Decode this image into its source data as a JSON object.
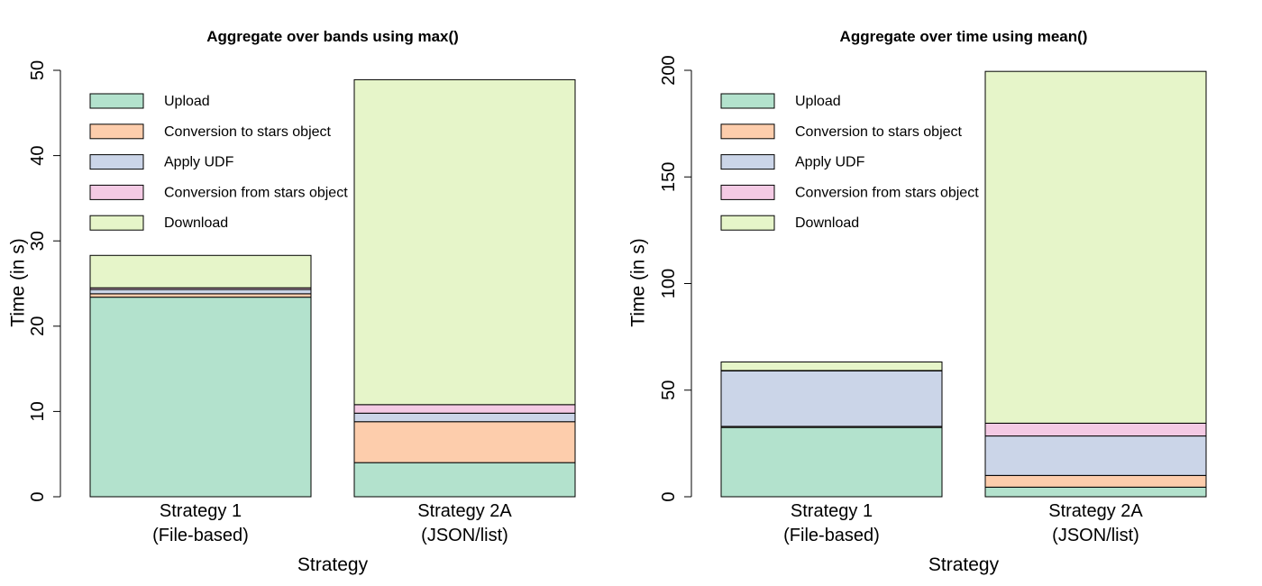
{
  "chart_data": [
    {
      "type": "bar",
      "stacked": true,
      "title": "Aggregate over bands using max()",
      "xlabel": "Strategy",
      "ylabel": "Time (in s)",
      "ylim": [
        0,
        50
      ],
      "yticks": [
        0,
        10,
        20,
        30,
        40,
        50
      ],
      "grid": false,
      "legend_position": "top-left",
      "categories": [
        [
          "Strategy 1",
          "(File-based)"
        ],
        [
          "Strategy 2A",
          "(JSON/list)"
        ]
      ],
      "series": [
        {
          "name": "Upload",
          "color": "#b3e2cd",
          "values": [
            23.4,
            4.0
          ]
        },
        {
          "name": "Conversion to stars object",
          "color": "#fdcdac",
          "values": [
            0.4,
            4.8
          ]
        },
        {
          "name": "Apply UDF",
          "color": "#cbd5e8",
          "values": [
            0.5,
            1.0
          ]
        },
        {
          "name": "Conversion from stars object",
          "color": "#f4cae4",
          "values": [
            0.2,
            1.0
          ]
        },
        {
          "name": "Download",
          "color": "#e6f5c9",
          "values": [
            3.8,
            38.1
          ]
        }
      ]
    },
    {
      "type": "bar",
      "stacked": true,
      "title": "Aggregate over time using mean()",
      "xlabel": "Strategy",
      "ylabel": "Time (in s)",
      "ylim": [
        0,
        200
      ],
      "yticks": [
        0,
        50,
        100,
        150,
        200
      ],
      "grid": false,
      "legend_position": "top-left",
      "categories": [
        [
          "Strategy 1",
          "(File-based)"
        ],
        [
          "Strategy 2A",
          "(JSON/list)"
        ]
      ],
      "series": [
        {
          "name": "Upload",
          "color": "#b3e2cd",
          "values": [
            32.5,
            4.5
          ]
        },
        {
          "name": "Conversion to stars object",
          "color": "#fdcdac",
          "values": [
            0.5,
            5.5
          ]
        },
        {
          "name": "Apply UDF",
          "color": "#cbd5e8",
          "values": [
            26.0,
            18.5
          ]
        },
        {
          "name": "Conversion from stars object",
          "color": "#f4cae4",
          "values": [
            0.2,
            6.0
          ]
        },
        {
          "name": "Download",
          "color": "#e6f5c9",
          "values": [
            4.0,
            165.0
          ]
        }
      ]
    }
  ]
}
